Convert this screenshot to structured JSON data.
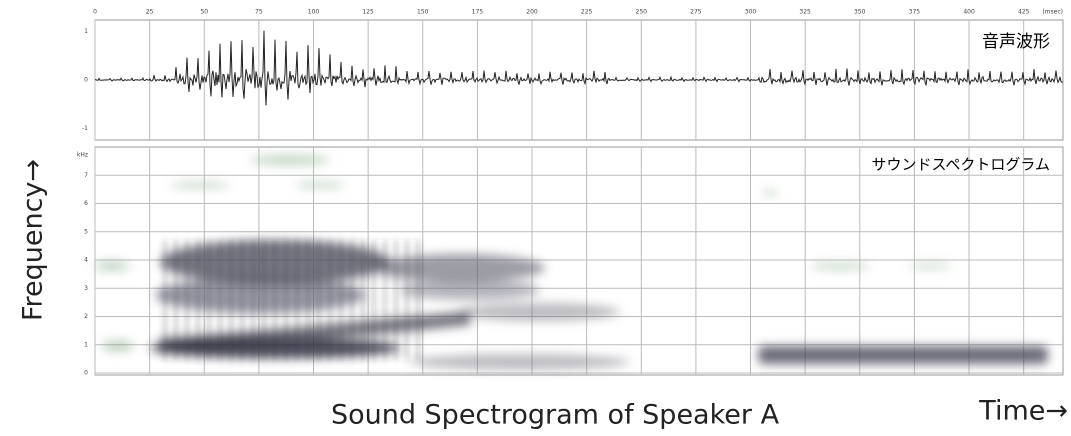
{
  "figure": {
    "time_axis": {
      "ticks": [
        0,
        25,
        50,
        75,
        100,
        125,
        150,
        175,
        200,
        225,
        250,
        275,
        300,
        325,
        350,
        375,
        400,
        425
      ],
      "end_label": "(msec)",
      "xlim": [
        0,
        443
      ]
    },
    "waveform": {
      "label": "音声波形",
      "yticks": [
        1,
        0,
        -1
      ],
      "ylim": [
        -1.15,
        1.15
      ]
    },
    "spectrogram": {
      "label": "サウンドスペクトログラム",
      "yticks": [
        0,
        1,
        2,
        3,
        4,
        5,
        6,
        7
      ],
      "unit": "kHz",
      "ylim": [
        0,
        8
      ]
    },
    "y_axis_label": "Frequency→",
    "caption": "Sound Spectrogram of Speaker A",
    "x_axis_label": "Time→"
  }
}
